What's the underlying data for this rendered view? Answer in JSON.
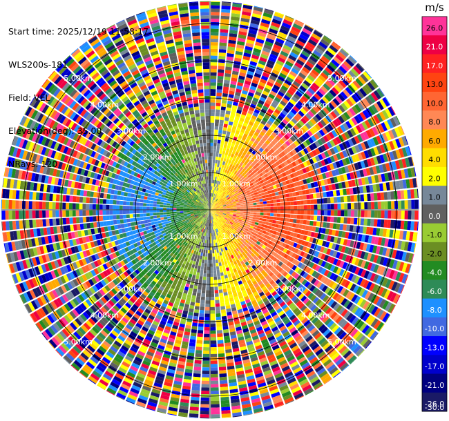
{
  "header": {
    "start_time": "Start time: 2025/12/19 11:58:17",
    "instrument": "WLS200s-181",
    "field": "Field: VEL",
    "elevation": "Elevation(deg): 35.00",
    "nrays": "NRays: 120"
  },
  "colorbar": {
    "unit": "m/s",
    "ticks": [
      "26.0",
      "21.0",
      "17.0",
      "13.0",
      "10.0",
      "8.0",
      "6.0",
      "4.0",
      "2.0",
      "1.0",
      "0.0",
      "-1.0",
      "-2.0",
      "-4.0",
      "-6.0",
      "-8.0",
      "-10.0",
      "-13.0",
      "-17.0",
      "-21.0",
      "-26.0",
      "-30.0"
    ],
    "colors": [
      "#ff3399",
      "#ee0044",
      "#ff2222",
      "#ff4411",
      "#ff6633",
      "#ff8855",
      "#ffaa00",
      "#ffdd00",
      "#ffff00",
      "#778899",
      "#606060",
      "#99cc33",
      "#6b8e23",
      "#228b22",
      "#2e8b57",
      "#1e90ff",
      "#4169e1",
      "#0000ff",
      "#0000cc",
      "#000080",
      "#1a1a66"
    ]
  },
  "chart_data": {
    "type": "heatmap",
    "projection": "polar (plan position indicator)",
    "field": "VEL",
    "units": "m/s",
    "value_range": [
      -30.0,
      26.0
    ],
    "range_rings_km": [
      1,
      2,
      3,
      4,
      5
    ],
    "ring_labels": [
      "1.00km",
      "2.00km",
      "3.00km",
      "4.00km",
      "5.00km"
    ],
    "nrays": 120,
    "max_range_km": 5.6,
    "near_field_pattern": {
      "west": "negative (-6 to -21 m/s)",
      "east": "positive (6 to 21 m/s)",
      "north_south": "near zero (-2 to 4 m/s)"
    },
    "far_field": "noise (random colors beyond ~2.6 km)"
  }
}
